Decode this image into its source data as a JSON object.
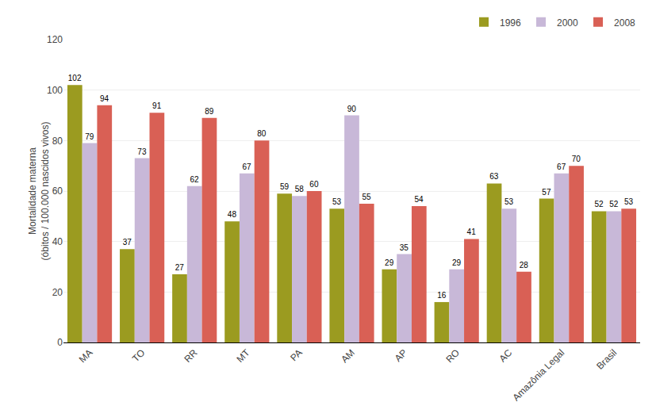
{
  "chart_data": {
    "type": "bar",
    "ylabel": "Mortalidade materna\n(óbitos / 100.000 nascidos vivos)",
    "categories": [
      "MA",
      "TO",
      "RR",
      "MT",
      "PA",
      "AM",
      "AP",
      "RO",
      "AC",
      "Amazônia Legal",
      "Brasil"
    ],
    "series": [
      {
        "name": "1996",
        "color": "#9B9B20",
        "values": [
          102,
          37,
          27,
          48,
          59,
          53,
          29,
          16,
          63,
          57,
          52
        ]
      },
      {
        "name": "2000",
        "color": "#C8B8D8",
        "values": [
          79,
          73,
          62,
          67,
          58,
          90,
          35,
          29,
          53,
          67,
          52
        ]
      },
      {
        "name": "2008",
        "color": "#D96055",
        "values": [
          94,
          91,
          89,
          80,
          60,
          55,
          54,
          41,
          28,
          70,
          53
        ]
      }
    ],
    "ylim": [
      0,
      120
    ],
    "yticks": [
      0,
      20,
      40,
      60,
      80,
      100,
      120
    ],
    "grid": true,
    "legend": "upper right",
    "data_labels": true
  }
}
